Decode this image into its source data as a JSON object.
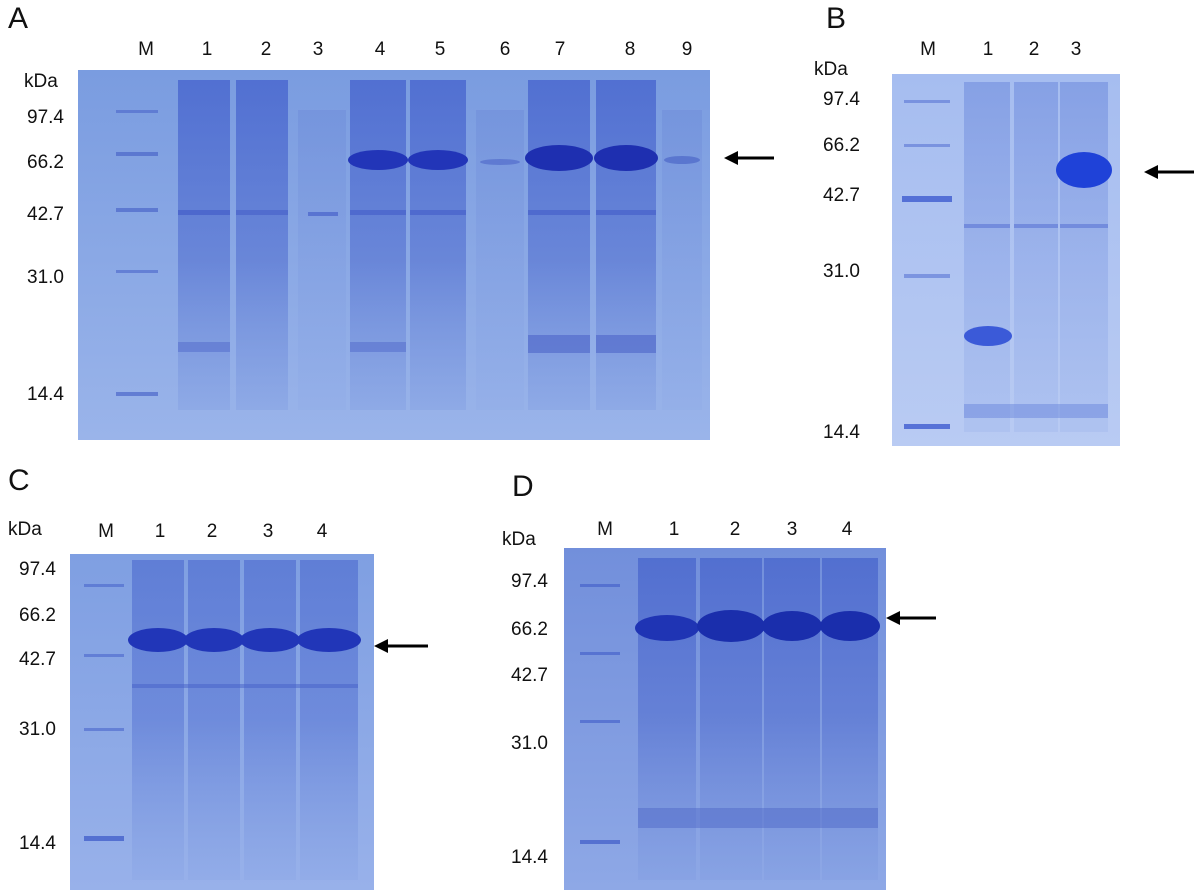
{
  "panels": [
    {
      "letter": "A",
      "unit": "kDa",
      "lanes": [
        "M",
        "1",
        "2",
        "3",
        "4",
        "5",
        "6",
        "7",
        "8",
        "9"
      ],
      "markers": [
        "97.4",
        "66.2",
        "42.7",
        "31.0",
        "14.4"
      ]
    },
    {
      "letter": "B",
      "unit": "kDa",
      "lanes": [
        "M",
        "1",
        "2",
        "3"
      ],
      "markers": [
        "97.4",
        "66.2",
        "42.7",
        "31.0",
        "14.4"
      ]
    },
    {
      "letter": "C",
      "unit": "kDa",
      "lanes": [
        "M",
        "1",
        "2",
        "3",
        "4"
      ],
      "markers": [
        "97.4",
        "66.2",
        "42.7",
        "31.0",
        "14.4"
      ]
    },
    {
      "letter": "D",
      "unit": "kDa",
      "lanes": [
        "M",
        "1",
        "2",
        "3",
        "4"
      ],
      "markers": [
        "97.4",
        "66.2",
        "42.7",
        "31.0",
        "14.4"
      ]
    }
  ],
  "colors": {
    "gel_background": "#7d9ee0",
    "band": "#2a3fc0",
    "text": "#111111",
    "arrow": "#000000"
  }
}
